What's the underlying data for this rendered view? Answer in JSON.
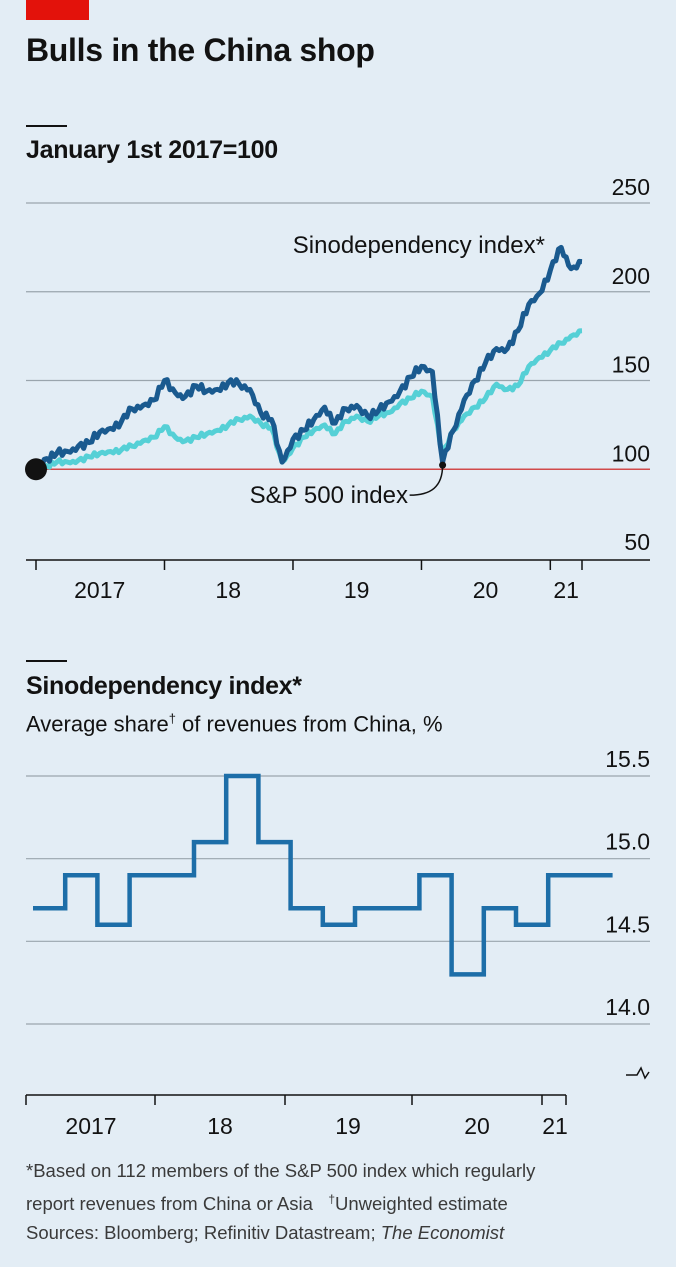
{
  "title": "Bulls in the China shop",
  "colors": {
    "accent_red": "#e3120b",
    "sinodependency": "#1a5a8f",
    "sp500": "#55d0d6",
    "base_line": "#d14a4a",
    "step_line": "#1d6ea8",
    "grid": "#9aa5ad"
  },
  "chart_data": [
    {
      "type": "line",
      "title": "January 1st 2017=100",
      "y_ticks": [
        "250",
        "200",
        "150",
        "100",
        "50"
      ],
      "ylim": [
        50,
        250
      ],
      "x_ticks": [
        "2017",
        "18",
        "19",
        "20",
        "21"
      ],
      "reference_line": 100,
      "grid": true,
      "series": [
        {
          "name": "Sinodependency index*",
          "dates": [
            "2017-01",
            "2017-02",
            "2017-03",
            "2017-04",
            "2017-05",
            "2017-06",
            "2017-07",
            "2017-08",
            "2017-09",
            "2017-10",
            "2017-11",
            "2017-12",
            "2018-01",
            "2018-02",
            "2018-03",
            "2018-04",
            "2018-05",
            "2018-06",
            "2018-07",
            "2018-08",
            "2018-09",
            "2018-10",
            "2018-11",
            "2018-12",
            "2019-01",
            "2019-02",
            "2019-03",
            "2019-04",
            "2019-05",
            "2019-06",
            "2019-07",
            "2019-08",
            "2019-09",
            "2019-10",
            "2019-11",
            "2019-12",
            "2020-01",
            "2020-02",
            "2020-03",
            "2020-04",
            "2020-05",
            "2020-06",
            "2020-07",
            "2020-08",
            "2020-09",
            "2020-10",
            "2020-11",
            "2020-12",
            "2021-01",
            "2021-02",
            "2021-03",
            "2021-04"
          ],
          "values": [
            100,
            106,
            109,
            110,
            113,
            115,
            121,
            123,
            127,
            134,
            136,
            139,
            150,
            143,
            141,
            147,
            144,
            145,
            149,
            148,
            145,
            132,
            128,
            104,
            117,
            122,
            128,
            135,
            126,
            134,
            136,
            130,
            133,
            138,
            144,
            152,
            158,
            155,
            104,
            122,
            139,
            150,
            160,
            168,
            168,
            178,
            193,
            199,
            212,
            225,
            213,
            217
          ]
        },
        {
          "name": "S&P 500 index",
          "dates": [
            "2017-01",
            "2017-02",
            "2017-03",
            "2017-04",
            "2017-05",
            "2017-06",
            "2017-07",
            "2017-08",
            "2017-09",
            "2017-10",
            "2017-11",
            "2017-12",
            "2018-01",
            "2018-02",
            "2018-03",
            "2018-04",
            "2018-05",
            "2018-06",
            "2018-07",
            "2018-08",
            "2018-09",
            "2018-10",
            "2018-11",
            "2018-12",
            "2019-01",
            "2019-02",
            "2019-03",
            "2019-04",
            "2019-05",
            "2019-06",
            "2019-07",
            "2019-08",
            "2019-09",
            "2019-10",
            "2019-11",
            "2019-12",
            "2020-01",
            "2020-02",
            "2020-03",
            "2020-04",
            "2020-05",
            "2020-06",
            "2020-07",
            "2020-08",
            "2020-09",
            "2020-10",
            "2020-11",
            "2020-12",
            "2021-01",
            "2021-02",
            "2021-03",
            "2021-04"
          ],
          "values": [
            100,
            102,
            104,
            104,
            105,
            107,
            109,
            110,
            111,
            113,
            116,
            118,
            124,
            118,
            116,
            118,
            120,
            122,
            125,
            128,
            130,
            126,
            123,
            104,
            112,
            118,
            122,
            125,
            120,
            127,
            130,
            127,
            130,
            132,
            137,
            140,
            144,
            141,
            108,
            122,
            130,
            135,
            140,
            148,
            145,
            147,
            158,
            163,
            167,
            171,
            175,
            178
          ]
        }
      ],
      "annotations": [
        {
          "text": "Sinodependency index*",
          "series": 0
        },
        {
          "text": "S&P 500 index",
          "series": 1,
          "point": {
            "date": "2020-03",
            "value": 104
          }
        }
      ]
    },
    {
      "type": "line",
      "step": true,
      "title": "Sinodependency index*",
      "subtitle_before": "Average share",
      "subtitle_sup": "†",
      "subtitle_after": " of revenues from China, %",
      "y_ticks": [
        "15.5",
        "15.0",
        "14.5",
        "14.0"
      ],
      "ylim": [
        14.0,
        15.5
      ],
      "x_ticks": [
        "2017",
        "18",
        "19",
        "20",
        "21"
      ],
      "grid": true,
      "axis_break": true,
      "series": [
        {
          "quarters": [
            "2016Q4",
            "2017Q1",
            "2017Q2",
            "2017Q3",
            "2017Q4",
            "2018Q1",
            "2018Q2",
            "2018Q3",
            "2018Q4",
            "2019Q1",
            "2019Q2",
            "2019Q3",
            "2019Q4",
            "2020Q1",
            "2020Q2",
            "2020Q3",
            "2020Q4",
            "2021Q1"
          ],
          "values": [
            14.7,
            14.9,
            14.6,
            14.9,
            14.9,
            15.1,
            15.5,
            15.1,
            14.7,
            14.6,
            14.7,
            14.7,
            14.9,
            14.3,
            14.7,
            14.6,
            14.9,
            14.9
          ]
        }
      ]
    }
  ],
  "footnote": {
    "line1": "*Based on 112 members of the S&P 500 index which regularly",
    "line2": "report revenues from China or Asia",
    "line2b": "Unweighted estimate",
    "dagger": "†",
    "sources": "Sources: Bloomberg; Refinitiv Datastream; ",
    "sources_italic": "The Economist"
  }
}
